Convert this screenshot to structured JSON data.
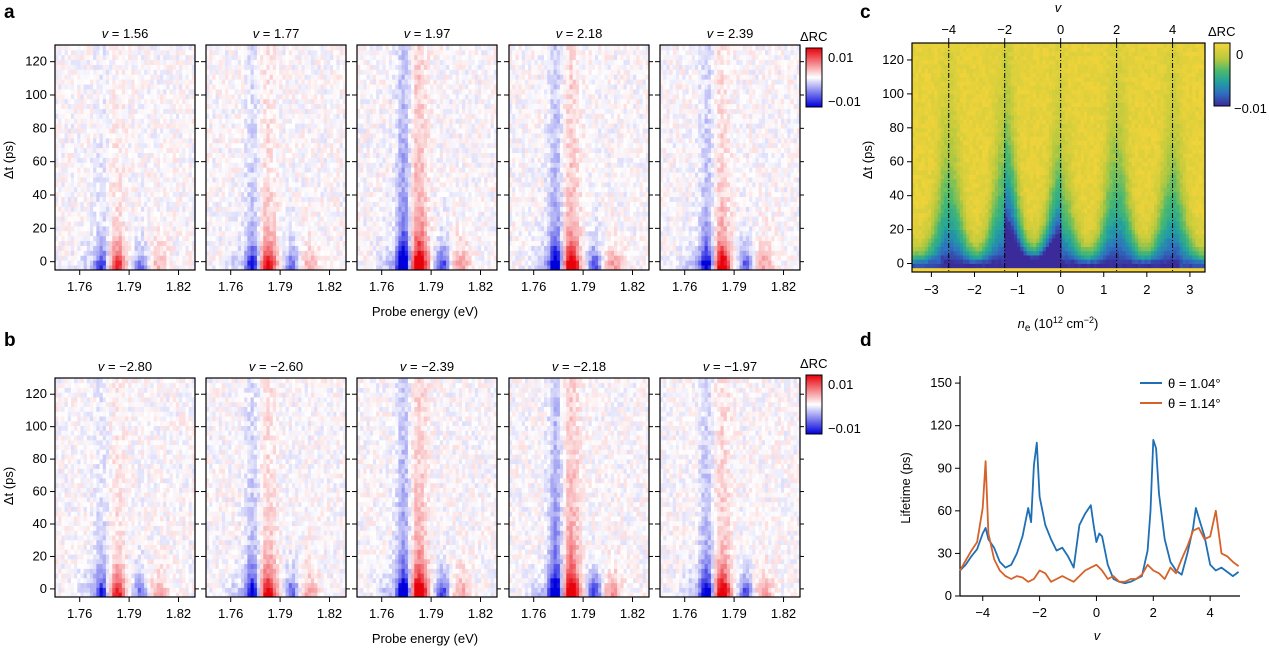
{
  "panel_letters": {
    "a": "a",
    "b": "b",
    "c": "c",
    "d": "d"
  },
  "colors": {
    "diverging_neg": "#0000dd",
    "diverging_pos": "#e8000a",
    "viridis_low": "#3a2a9a",
    "viridis_high": "#f4d43a",
    "theta1": "#1f6fb4",
    "theta2": "#d5622a"
  },
  "chart_data": [
    {
      "panel": "a",
      "type": "heatmap",
      "titles": [
        "v = 1.56",
        "v = 1.77",
        "v = 1.97",
        "v = 2.18",
        "v = 2.39"
      ],
      "nu": [
        1.56,
        1.77,
        1.97,
        2.18,
        2.39
      ],
      "xlabel": "Probe energy (eV)",
      "ylabel": "Δt (ps)",
      "xticks": [
        "1.76",
        "1.79",
        "1.82"
      ],
      "xtick_values": [
        1.76,
        1.79,
        1.82
      ],
      "yticks": [
        "0",
        "20",
        "40",
        "60",
        "80",
        "100",
        "120"
      ],
      "xlim": [
        1.745,
        1.83
      ],
      "ylim": [
        -5,
        130
      ],
      "colorbar": {
        "label": "ΔRC",
        "ticks": [
          "0.01",
          "−0.01"
        ],
        "range": [
          -0.01,
          0.01
        ]
      },
      "signal_strength": [
        0.35,
        0.6,
        1.0,
        0.85,
        0.7
      ]
    },
    {
      "panel": "b",
      "type": "heatmap",
      "titles": [
        "v = −2.80",
        "v = −2.60",
        "v = −2.39",
        "v = −2.18",
        "v = −1.97"
      ],
      "nu": [
        -2.8,
        -2.6,
        -2.39,
        -2.18,
        -1.97
      ],
      "xlabel": "Probe energy (eV)",
      "ylabel": "Δt (ps)",
      "xticks": [
        "1.76",
        "1.79",
        "1.82"
      ],
      "xtick_values": [
        1.76,
        1.79,
        1.82
      ],
      "yticks": [
        "0",
        "20",
        "40",
        "60",
        "80",
        "100",
        "120"
      ],
      "xlim": [
        1.745,
        1.83
      ],
      "ylim": [
        -5,
        130
      ],
      "colorbar": {
        "label": "ΔRC",
        "ticks": [
          "0.01",
          "−0.01"
        ],
        "range": [
          -0.01,
          0.01
        ]
      },
      "signal_strength": [
        0.45,
        0.65,
        0.9,
        1.0,
        0.75
      ]
    },
    {
      "panel": "c",
      "type": "heatmap",
      "xlabel": "n",
      "xlabel_sub": "e",
      "xlabel_rest": " (10",
      "xlabel_sup1": "12",
      "xlabel_mid": " cm",
      "xlabel_sup2": "−2",
      "xlabel_end": ")",
      "top_label": "v",
      "ylabel": "Δt (ps)",
      "xticks": [
        "−3",
        "−2",
        "−1",
        "0",
        "1",
        "2",
        "3"
      ],
      "xtick_values": [
        -3,
        -2,
        -1,
        0,
        1,
        2,
        3
      ],
      "top_ticks": [
        "−4",
        "−2",
        "0",
        "2",
        "4"
      ],
      "top_tick_values": [
        -4,
        -2,
        0,
        2,
        4
      ],
      "yticks": [
        "0",
        "20",
        "40",
        "60",
        "80",
        "100",
        "120"
      ],
      "xlim": [
        -3.45,
        3.35
      ],
      "ylim": [
        -5,
        130
      ],
      "nu_per_ne": 1.54,
      "dashed_lines_nu": [
        -4,
        -2,
        0,
        2,
        4
      ],
      "colorbar": {
        "label": "ΔRC",
        "ticks": [
          "0",
          "−0.01"
        ],
        "range": [
          -0.012,
          0.001
        ]
      }
    },
    {
      "panel": "d",
      "type": "line",
      "xlabel": "v",
      "ylabel": "Lifetime (ps)",
      "xticks": [
        "−4",
        "−2",
        "0",
        "2",
        "4"
      ],
      "xtick_values": [
        -4,
        -2,
        0,
        2,
        4
      ],
      "yticks": [
        "0",
        "30",
        "60",
        "90",
        "120",
        "150"
      ],
      "ytick_values": [
        0,
        30,
        60,
        90,
        120,
        150
      ],
      "xlim": [
        -4.8,
        5.05
      ],
      "ylim": [
        0,
        155
      ],
      "legend_position": "top-right",
      "series": [
        {
          "name": "θ = 1.04°",
          "x": [
            -4.8,
            -4.6,
            -4.4,
            -4.2,
            -4.0,
            -3.9,
            -3.8,
            -3.6,
            -3.4,
            -3.2,
            -3.0,
            -2.8,
            -2.6,
            -2.4,
            -2.3,
            -2.2,
            -2.1,
            -2.0,
            -1.8,
            -1.6,
            -1.4,
            -1.2,
            -1.0,
            -0.8,
            -0.6,
            -0.4,
            -0.2,
            -0.1,
            0.0,
            0.1,
            0.2,
            0.4,
            0.6,
            0.8,
            1.0,
            1.2,
            1.4,
            1.6,
            1.8,
            1.9,
            2.0,
            2.1,
            2.2,
            2.4,
            2.6,
            2.8,
            3.0,
            3.2,
            3.4,
            3.5,
            3.6,
            3.8,
            4.0,
            4.2,
            4.4,
            4.6,
            4.8,
            5.0
          ],
          "y": [
            18,
            22,
            28,
            33,
            44,
            48,
            40,
            34,
            24,
            20,
            22,
            30,
            42,
            62,
            52,
            92,
            108,
            70,
            50,
            40,
            32,
            34,
            28,
            20,
            50,
            58,
            64,
            50,
            38,
            44,
            42,
            22,
            12,
            10,
            9,
            10,
            12,
            14,
            32,
            60,
            110,
            104,
            72,
            40,
            24,
            18,
            15,
            30,
            48,
            62,
            55,
            42,
            22,
            18,
            20,
            17,
            14,
            17
          ]
        },
        {
          "name": "θ = 1.14°",
          "x": [
            -4.8,
            -4.6,
            -4.4,
            -4.2,
            -4.0,
            -3.9,
            -3.8,
            -3.6,
            -3.4,
            -3.2,
            -3.0,
            -2.8,
            -2.6,
            -2.4,
            -2.2,
            -2.0,
            -1.8,
            -1.6,
            -1.4,
            -1.2,
            -1.0,
            -0.8,
            -0.6,
            -0.4,
            -0.2,
            0.0,
            0.2,
            0.4,
            0.6,
            0.8,
            1.0,
            1.2,
            1.4,
            1.6,
            1.8,
            2.0,
            2.2,
            2.4,
            2.6,
            2.8,
            3.0,
            3.2,
            3.4,
            3.6,
            3.8,
            4.0,
            4.2,
            4.4,
            4.6,
            4.8,
            5.0
          ],
          "y": [
            18,
            25,
            32,
            38,
            62,
            95,
            44,
            26,
            18,
            14,
            12,
            14,
            13,
            10,
            12,
            18,
            16,
            10,
            12,
            14,
            12,
            10,
            14,
            18,
            20,
            22,
            18,
            12,
            14,
            10,
            10,
            12,
            12,
            15,
            22,
            18,
            16,
            12,
            20,
            16,
            26,
            35,
            46,
            48,
            40,
            42,
            60,
            30,
            28,
            24,
            21
          ]
        }
      ]
    }
  ]
}
